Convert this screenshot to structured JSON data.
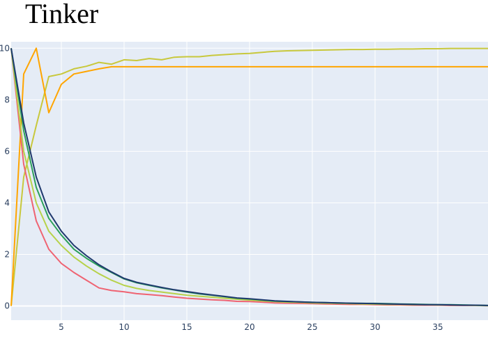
{
  "chart_data": {
    "type": "line",
    "title": "Tinker",
    "xlabel": "",
    "ylabel": "",
    "xlim": [
      1,
      39
    ],
    "ylim": [
      -0.55,
      10.25
    ],
    "x_ticks": [
      5,
      10,
      15,
      20,
      25,
      30,
      35
    ],
    "y_ticks": [
      0,
      2,
      4,
      6,
      8,
      10
    ],
    "grid": true,
    "legend": "none",
    "colors": {
      "plot_bg": "#e5ecf6",
      "grid": "#ffffff",
      "tick_text": "#2a3f5f"
    },
    "series": [
      {
        "color": "#c8c83c",
        "x": [
          1,
          2,
          3,
          4,
          5,
          6,
          7,
          8,
          9,
          10,
          11,
          12,
          13,
          14,
          15,
          16,
          17,
          18,
          19,
          20,
          21,
          22,
          23,
          24,
          25,
          26,
          27,
          28,
          29,
          30,
          31,
          32,
          33,
          34,
          35,
          36,
          37,
          38,
          39
        ],
        "values": [
          0,
          5.0,
          7.0,
          8.9,
          9.0,
          9.2,
          9.3,
          9.45,
          9.38,
          9.55,
          9.52,
          9.6,
          9.55,
          9.65,
          9.67,
          9.67,
          9.72,
          9.75,
          9.78,
          9.8,
          9.84,
          9.88,
          9.9,
          9.91,
          9.92,
          9.93,
          9.94,
          9.95,
          9.95,
          9.96,
          9.96,
          9.97,
          9.97,
          9.98,
          9.98,
          9.99,
          9.99,
          9.99,
          9.99
        ]
      },
      {
        "color": "#ffa500",
        "x": [
          1,
          2,
          3,
          4,
          5,
          6,
          7,
          8,
          9,
          10,
          11,
          12,
          13,
          14,
          15,
          16,
          17,
          18,
          19,
          20,
          21,
          22,
          23,
          24,
          25,
          26,
          27,
          28,
          29,
          30,
          31,
          32,
          33,
          34,
          35,
          36,
          37,
          38,
          39
        ],
        "values": [
          0,
          9.0,
          10.0,
          7.5,
          8.6,
          9.0,
          9.1,
          9.2,
          9.28,
          9.28,
          9.28,
          9.28,
          9.28,
          9.28,
          9.28,
          9.28,
          9.28,
          9.28,
          9.28,
          9.28,
          9.28,
          9.28,
          9.28,
          9.28,
          9.28,
          9.28,
          9.28,
          9.28,
          9.28,
          9.28,
          9.28,
          9.28,
          9.28,
          9.28,
          9.28,
          9.28,
          9.28,
          9.28,
          9.28
        ]
      },
      {
        "color": "#ef6372",
        "x": [
          1,
          2,
          3,
          4,
          5,
          6,
          7,
          8,
          9,
          10,
          11,
          12,
          13,
          14,
          15,
          16,
          17,
          18,
          19,
          20,
          21,
          22,
          23,
          24,
          25,
          26,
          27,
          28,
          29,
          30,
          31,
          32,
          33,
          34,
          35,
          36,
          37,
          38,
          39
        ],
        "values": [
          10,
          5.5,
          3.3,
          2.2,
          1.65,
          1.3,
          1.0,
          0.7,
          0.6,
          0.55,
          0.48,
          0.44,
          0.4,
          0.35,
          0.3,
          0.27,
          0.24,
          0.22,
          0.18,
          0.17,
          0.15,
          0.12,
          0.11,
          0.1,
          0.09,
          0.08,
          0.07,
          0.06,
          0.06,
          0.05,
          0.04,
          0.04,
          0.03,
          0.03,
          0.03,
          0.02,
          0.02,
          0.02,
          0.01
        ]
      },
      {
        "color": "#b7d24a",
        "x": [
          1,
          2,
          3,
          4,
          5,
          6,
          7,
          8,
          9,
          10,
          11,
          12,
          13,
          14,
          15,
          16,
          17,
          18,
          19,
          20,
          21,
          22,
          23,
          24,
          25,
          26,
          27,
          28,
          29,
          30,
          31,
          32,
          33,
          34,
          35,
          36,
          37,
          38,
          39
        ],
        "values": [
          10,
          6.0,
          4.0,
          2.9,
          2.35,
          1.9,
          1.55,
          1.25,
          1.0,
          0.8,
          0.68,
          0.6,
          0.54,
          0.48,
          0.42,
          0.38,
          0.34,
          0.3,
          0.26,
          0.23,
          0.2,
          0.17,
          0.15,
          0.14,
          0.12,
          0.11,
          0.1,
          0.09,
          0.08,
          0.07,
          0.06,
          0.06,
          0.05,
          0.05,
          0.04,
          0.04,
          0.03,
          0.02,
          0.01
        ]
      },
      {
        "color": "#2ca05a",
        "x": [
          1,
          2,
          3,
          4,
          5,
          6,
          7,
          8,
          9,
          10,
          11,
          12,
          13,
          14,
          15,
          16,
          17,
          18,
          19,
          20,
          21,
          22,
          23,
          24,
          25,
          26,
          27,
          28,
          29,
          30,
          31,
          32,
          33,
          34,
          35,
          36,
          37,
          38,
          39
        ],
        "values": [
          10,
          6.8,
          4.6,
          3.4,
          2.75,
          2.2,
          1.85,
          1.55,
          1.3,
          1.05,
          0.9,
          0.8,
          0.7,
          0.62,
          0.54,
          0.47,
          0.42,
          0.36,
          0.3,
          0.27,
          0.23,
          0.19,
          0.17,
          0.16,
          0.14,
          0.13,
          0.12,
          0.11,
          0.1,
          0.1,
          0.09,
          0.08,
          0.07,
          0.06,
          0.05,
          0.05,
          0.04,
          0.03,
          0.02
        ]
      },
      {
        "color": "#1f3a6e",
        "x": [
          1,
          2,
          3,
          4,
          5,
          6,
          7,
          8,
          9,
          10,
          11,
          12,
          13,
          14,
          15,
          16,
          17,
          18,
          19,
          20,
          21,
          22,
          23,
          24,
          25,
          26,
          27,
          28,
          29,
          30,
          31,
          32,
          33,
          34,
          35,
          36,
          37,
          38,
          39
        ],
        "values": [
          10,
          7.1,
          5.0,
          3.65,
          2.9,
          2.35,
          1.95,
          1.6,
          1.32,
          1.07,
          0.92,
          0.82,
          0.72,
          0.63,
          0.56,
          0.49,
          0.43,
          0.37,
          0.31,
          0.28,
          0.24,
          0.2,
          0.18,
          0.16,
          0.14,
          0.13,
          0.12,
          0.11,
          0.1,
          0.09,
          0.08,
          0.07,
          0.06,
          0.05,
          0.05,
          0.04,
          0.03,
          0.03,
          0.02
        ]
      }
    ]
  }
}
